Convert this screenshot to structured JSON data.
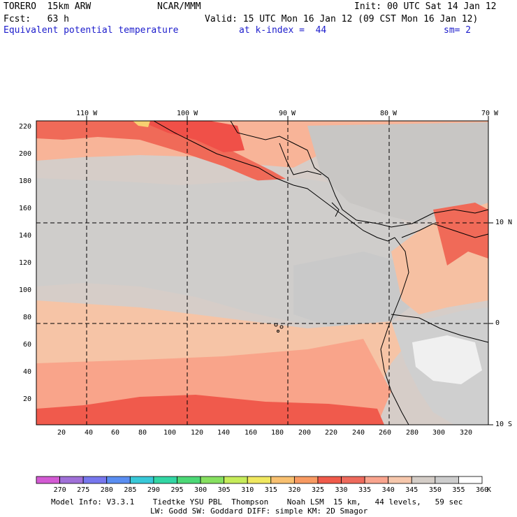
{
  "header": {
    "model": "TORERO  15km ARW",
    "org": "NCAR/MMM",
    "init": "Init: 00 UTC Sat 14 Jan 12",
    "fcst": "Fcst:   63 h",
    "valid": "Valid: 15 UTC Mon 16 Jan 12 (09 CST Mon 16 Jan 12)",
    "field": "Equivalent potential temperature",
    "level": "at k-index =  44",
    "smoothing": "sm= 2"
  },
  "map": {
    "lon_labels": [
      "110 W",
      "100 W",
      "90 W",
      "80 W",
      "70 W"
    ],
    "lat_labels": [
      "10 N",
      "0",
      "10 S"
    ],
    "x_ticks": [
      "20",
      "40",
      "60",
      "80",
      "100",
      "120",
      "140",
      "160",
      "180",
      "200",
      "220",
      "240",
      "260",
      "280",
      "300",
      "320"
    ],
    "y_ticks": [
      "220",
      "200",
      "180",
      "160",
      "140",
      "120",
      "100",
      "80",
      "60",
      "40",
      "20"
    ]
  },
  "colorbar": {
    "labels": [
      "270",
      "275",
      "280",
      "285",
      "290",
      "295",
      "300",
      "305",
      "310",
      "315",
      "320",
      "325",
      "330",
      "335",
      "340",
      "345",
      "350",
      "355",
      "360"
    ],
    "unit": "K",
    "colors": [
      "#d35ad3",
      "#a070d8",
      "#7777ee",
      "#5a8ef2",
      "#38c8d8",
      "#32d6a4",
      "#4cd876",
      "#86e060",
      "#c6ec5a",
      "#f0e860",
      "#f8c070",
      "#f89a62",
      "#f05a4a",
      "#ee6a5c",
      "#f9a48e",
      "#f6c7ac",
      "#d4cdc7",
      "#cdcdcd",
      "#ffffff"
    ]
  },
  "footer": {
    "line1": "Model Info: V3.3.1    Tiedtke YSU PBL  Thompson    Noah LSM  15 km,   44 levels,   59 sec",
    "line2": "LW: Godd SW: Goddard DIFF: simple KM: 2D Smagor"
  }
}
